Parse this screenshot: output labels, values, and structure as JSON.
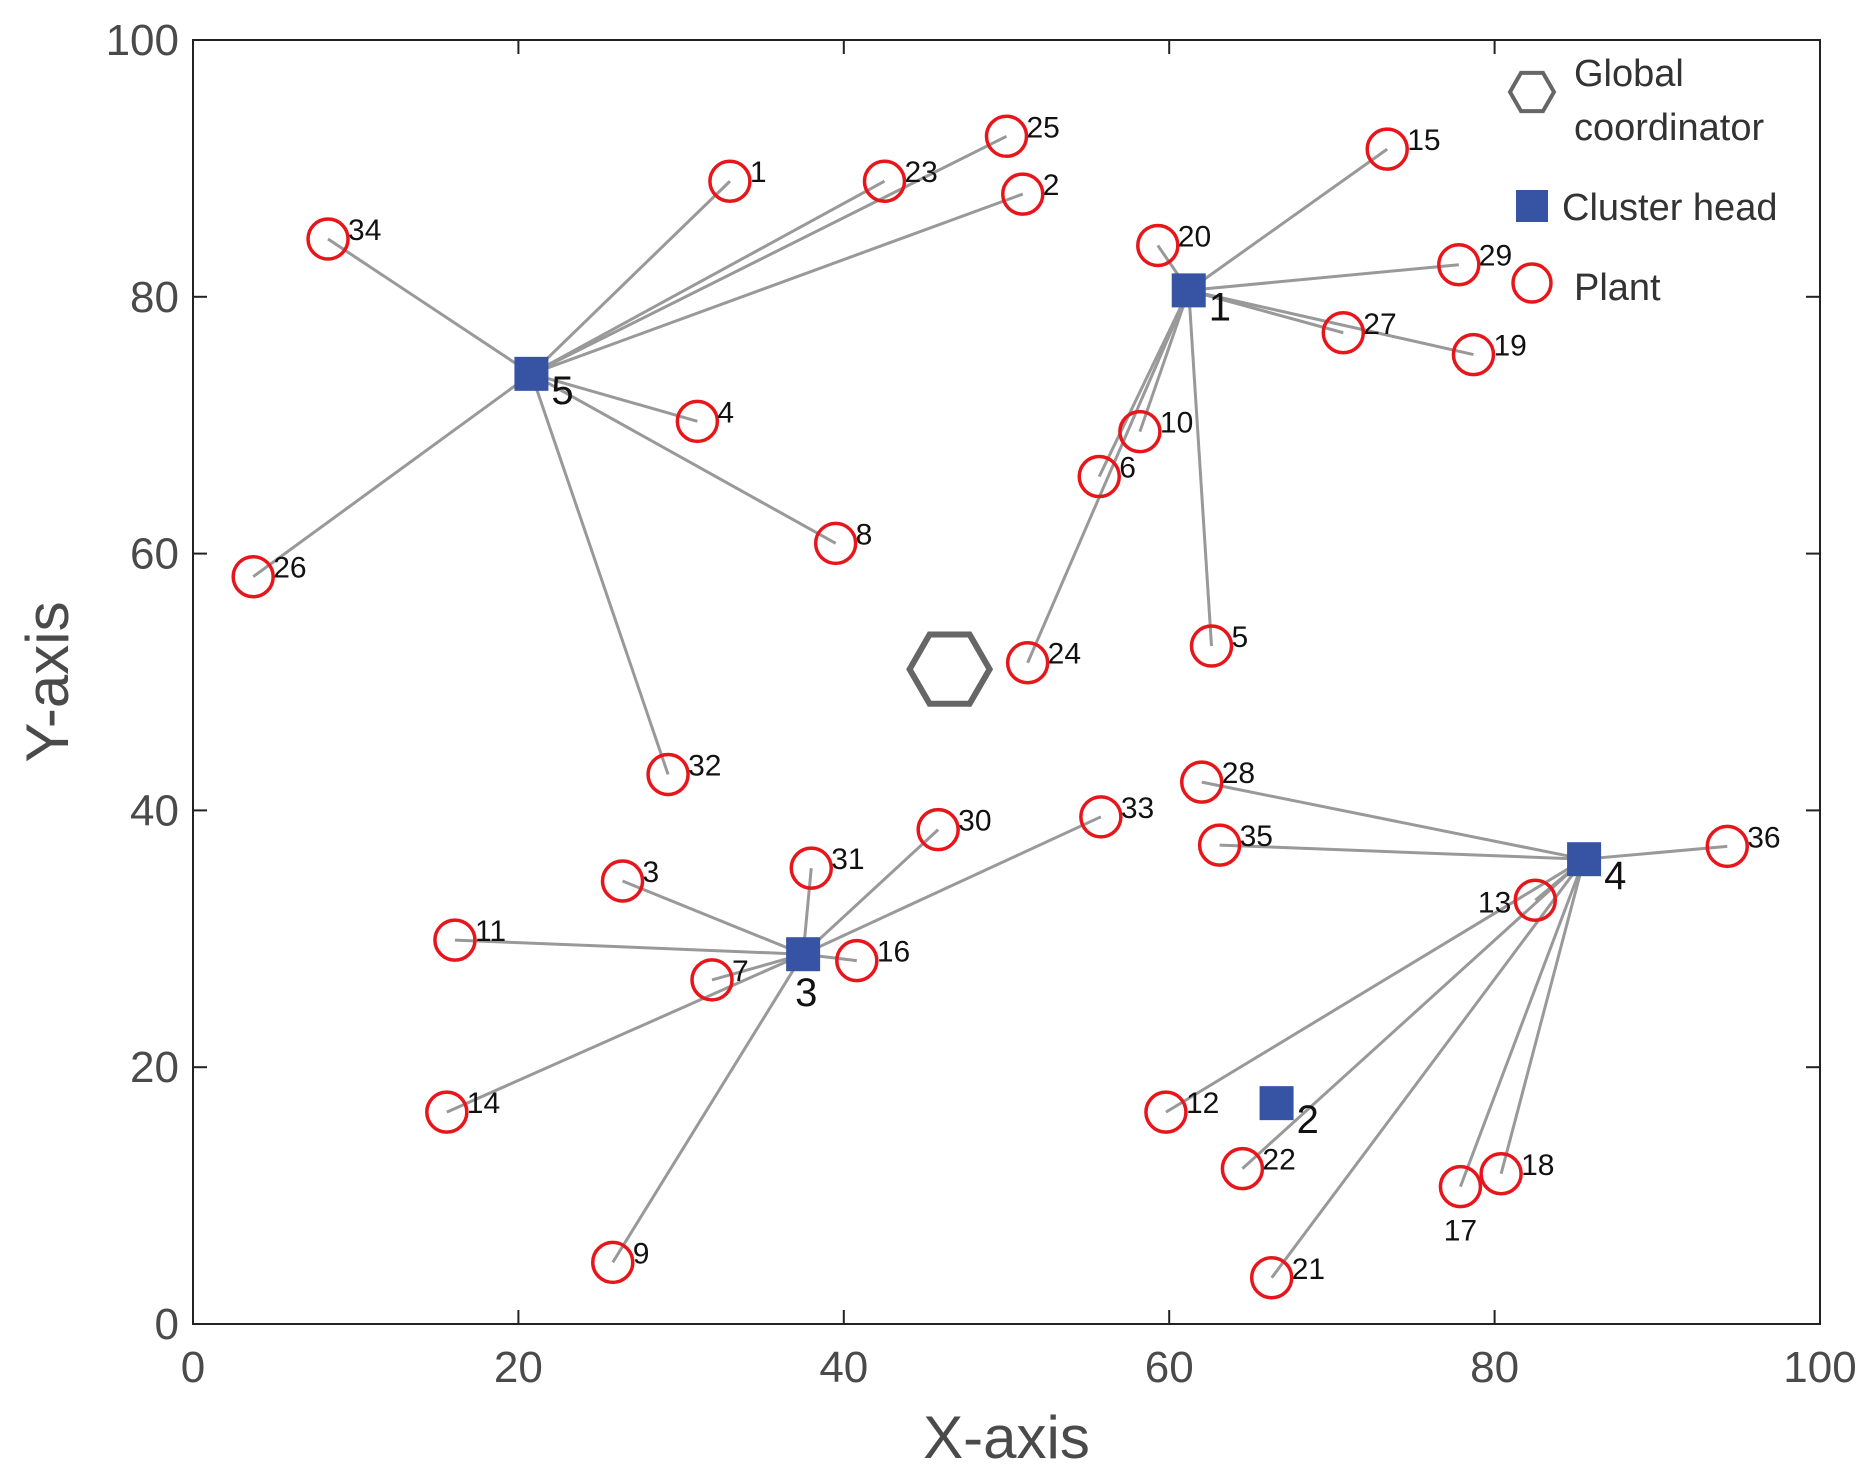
{
  "chart_data": {
    "type": "scatter",
    "title": "",
    "xlabel": "X-axis",
    "ylabel": "Y-axis",
    "xlim": [
      0,
      100
    ],
    "ylim": [
      0,
      100
    ],
    "xticks": [
      0,
      20,
      40,
      60,
      80,
      100
    ],
    "yticks": [
      0,
      20,
      40,
      60,
      80,
      100
    ],
    "grid": false,
    "legend_position": "top-right",
    "legend": [
      {
        "key": "coordinator",
        "label_lines": [
          "Global",
          "coordinator"
        ]
      },
      {
        "key": "cluster_head",
        "label_lines": [
          "Cluster head"
        ]
      },
      {
        "key": "plant",
        "label_lines": [
          "Plant"
        ]
      }
    ],
    "colors": {
      "plant": "#e8161b",
      "cluster_head": "#3653a4",
      "link": "#999999",
      "coordinator": "#666666",
      "axis": "#222222"
    },
    "global_coordinator": {
      "x": 46.5,
      "y": 51
    },
    "cluster_heads": [
      {
        "id": "1",
        "x": 61.2,
        "y": 80.5
      },
      {
        "id": "2",
        "x": 66.6,
        "y": 17.2
      },
      {
        "id": "3",
        "x": 37.5,
        "y": 28.8
      },
      {
        "id": "4",
        "x": 85.5,
        "y": 36.2
      },
      {
        "id": "5",
        "x": 20.8,
        "y": 74.0
      }
    ],
    "plants": [
      {
        "id": "1",
        "x": 33.0,
        "y": 89.0,
        "head": "5"
      },
      {
        "id": "2",
        "x": 51.0,
        "y": 88.0,
        "head": "5"
      },
      {
        "id": "3",
        "x": 26.4,
        "y": 34.5,
        "head": "3"
      },
      {
        "id": "4",
        "x": 31.0,
        "y": 70.3,
        "head": "5"
      },
      {
        "id": "5",
        "x": 62.6,
        "y": 52.8,
        "head": "1"
      },
      {
        "id": "6",
        "x": 55.7,
        "y": 66.0,
        "head": "1"
      },
      {
        "id": "7",
        "x": 31.9,
        "y": 26.8,
        "head": "3"
      },
      {
        "id": "8",
        "x": 39.5,
        "y": 60.8,
        "head": "5"
      },
      {
        "id": "9",
        "x": 25.8,
        "y": 4.8,
        "head": "3"
      },
      {
        "id": "10",
        "x": 58.2,
        "y": 69.5,
        "head": "1"
      },
      {
        "id": "11",
        "x": 16.1,
        "y": 29.9,
        "head": "3"
      },
      {
        "id": "12",
        "x": 59.8,
        "y": 16.5,
        "head": "4"
      },
      {
        "id": "13",
        "x": 82.5,
        "y": 33.0,
        "head": "4"
      },
      {
        "id": "14",
        "x": 15.6,
        "y": 16.5,
        "head": "3"
      },
      {
        "id": "15",
        "x": 73.4,
        "y": 91.5,
        "head": "1"
      },
      {
        "id": "16",
        "x": 40.8,
        "y": 28.3,
        "head": "3"
      },
      {
        "id": "17",
        "x": 77.9,
        "y": 10.7,
        "head": "4"
      },
      {
        "id": "18",
        "x": 80.4,
        "y": 11.7,
        "head": "4"
      },
      {
        "id": "19",
        "x": 78.7,
        "y": 75.5,
        "head": "1"
      },
      {
        "id": "20",
        "x": 59.3,
        "y": 84.0,
        "head": "1"
      },
      {
        "id": "21",
        "x": 66.3,
        "y": 3.6,
        "head": "4"
      },
      {
        "id": "22",
        "x": 64.5,
        "y": 12.1,
        "head": "4"
      },
      {
        "id": "23",
        "x": 42.5,
        "y": 89.0,
        "head": "5"
      },
      {
        "id": "24",
        "x": 51.3,
        "y": 51.5,
        "head": "1"
      },
      {
        "id": "25",
        "x": 50.0,
        "y": 92.5,
        "head": "5"
      },
      {
        "id": "26",
        "x": 3.7,
        "y": 58.2,
        "head": "5"
      },
      {
        "id": "27",
        "x": 70.7,
        "y": 77.2,
        "head": "1"
      },
      {
        "id": "28",
        "x": 62.0,
        "y": 42.2,
        "head": "4"
      },
      {
        "id": "29",
        "x": 77.8,
        "y": 82.5,
        "head": "1"
      },
      {
        "id": "30",
        "x": 45.8,
        "y": 38.5,
        "head": "3"
      },
      {
        "id": "31",
        "x": 38.0,
        "y": 35.5,
        "head": "3"
      },
      {
        "id": "32",
        "x": 29.2,
        "y": 42.8,
        "head": "5"
      },
      {
        "id": "33",
        "x": 55.8,
        "y": 39.5,
        "head": "3"
      },
      {
        "id": "34",
        "x": 8.3,
        "y": 84.5,
        "head": "5"
      },
      {
        "id": "35",
        "x": 63.1,
        "y": 37.3,
        "head": "4"
      },
      {
        "id": "36",
        "x": 94.3,
        "y": 37.2,
        "head": "4"
      }
    ]
  }
}
